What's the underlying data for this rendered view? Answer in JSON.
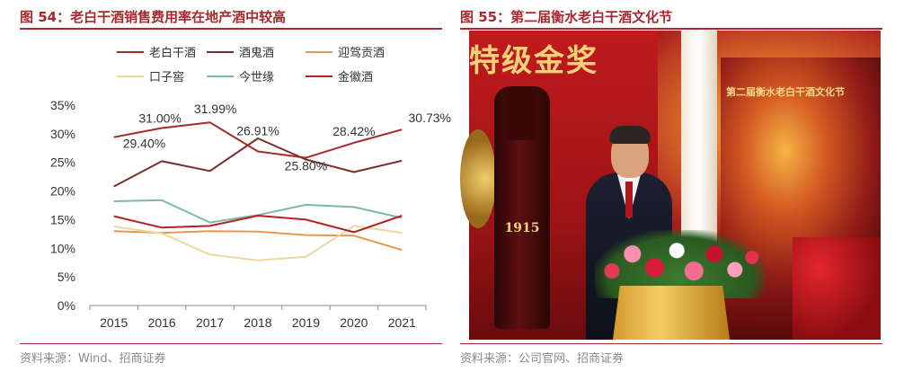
{
  "left": {
    "title": "图 54：老白干酒销售费用率在地产酒中较高",
    "source": "资料来源：Wind、招商证券"
  },
  "right": {
    "title": "图 55：第二届衡水老白干酒文化节",
    "source": "资料来源：公司官网、招商证券",
    "photo": {
      "banner": "特级金奖",
      "bottle_year": "1915",
      "screen_title": "第二届衡水老白干酒文化节"
    }
  },
  "colors": {
    "accent": "#a8282d",
    "老白干酒": "#a52a2a",
    "酒鬼酒": "#7b2c2c",
    "迎驾贡酒": "#e39a4f",
    "口子窖": "#e8d9a0",
    "今世缘": "#7fb8a8",
    "金徽酒": "#b22222"
  },
  "chart_data": {
    "type": "line",
    "categories": [
      "2015",
      "2016",
      "2017",
      "2018",
      "2019",
      "2020",
      "2021"
    ],
    "ylim": [
      0,
      35
    ],
    "yticks": [
      "0%",
      "5%",
      "10%",
      "15%",
      "20%",
      "25%",
      "30%",
      "35%"
    ],
    "legend_position": "top",
    "grid": false,
    "series": [
      {
        "name": "老白干酒",
        "color": "#a52a2a",
        "values": [
          29.4,
          31.0,
          31.99,
          26.91,
          25.8,
          28.42,
          30.73
        ],
        "labels": [
          "29.40%",
          "31.00%",
          "31.99%",
          "26.91%",
          "25.80%",
          "28.42%",
          "30.73%"
        ]
      },
      {
        "name": "酒鬼酒",
        "color": "#7b2c2c",
        "values": [
          20.8,
          25.2,
          23.5,
          29.2,
          25.5,
          23.3,
          25.3
        ]
      },
      {
        "name": "迎驾贡酒",
        "color": "#e39a4f",
        "values": [
          13.0,
          12.7,
          13.0,
          12.9,
          12.3,
          12.2,
          9.7
        ]
      },
      {
        "name": "口子窖",
        "color": "#e8d9a0",
        "values": [
          13.8,
          12.6,
          8.9,
          7.9,
          8.5,
          13.9,
          12.7
        ]
      },
      {
        "name": "今世缘",
        "color": "#7fb8a8",
        "values": [
          18.2,
          18.4,
          14.5,
          15.8,
          17.6,
          17.2,
          15.3
        ]
      },
      {
        "name": "金徽酒",
        "color": "#b22222",
        "values": [
          15.6,
          13.6,
          13.9,
          15.7,
          15.0,
          12.8,
          15.7
        ]
      }
    ]
  }
}
